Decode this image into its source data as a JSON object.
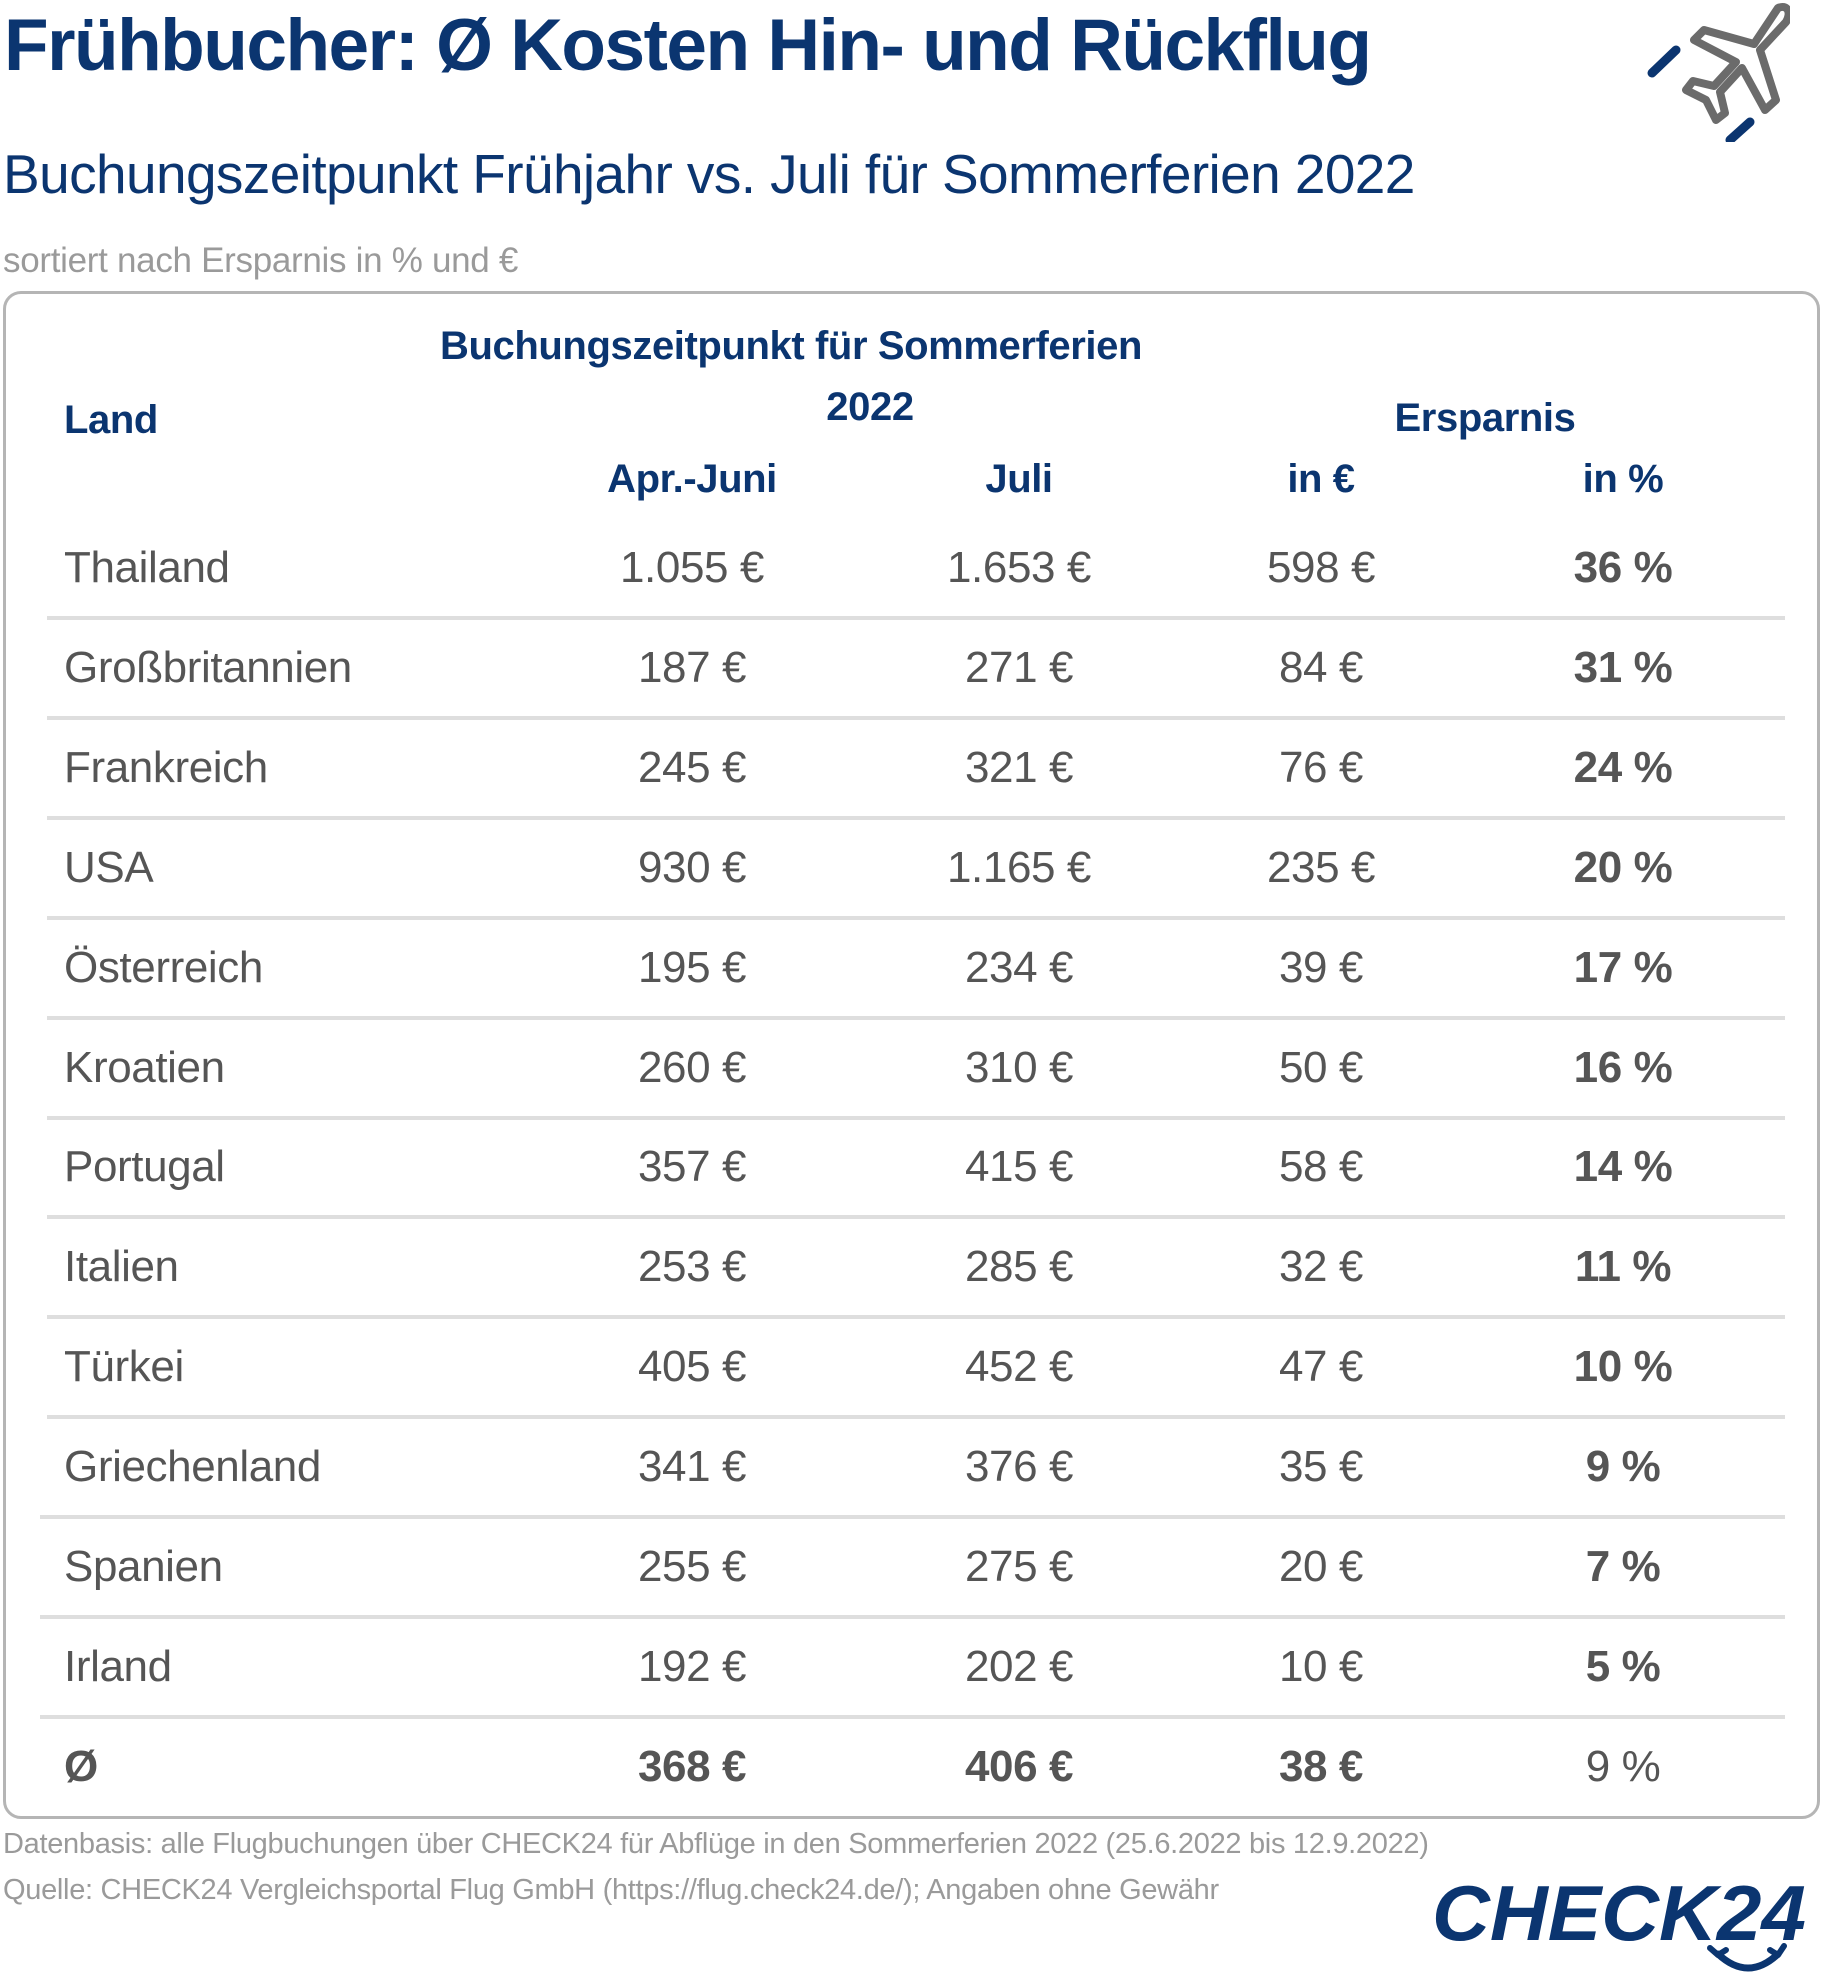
{
  "header": {
    "title": "Frühbucher: Ø Kosten Hin- und Rückflug",
    "subtitle": "Buchungszeitpunkt Frühjahr vs. Juli für Sommerferien 2022",
    "note": "sortiert nach Ersparnis in % und €",
    "icon": "airplane-icon"
  },
  "colors": {
    "brand_navy": "#0b3570",
    "text_gray": "#555555",
    "muted_gray": "#9a9a9a",
    "separator": "#dedede",
    "border": "#b5b5b5"
  },
  "table": {
    "headers": {
      "land": "Land",
      "group_booking_line1": "Buchungszeitpunkt für Sommerferien",
      "group_booking_line2": "2022",
      "group_savings": "Ersparnis",
      "apr_juni": "Apr.-Juni",
      "juli": "Juli",
      "in_eur": "in €",
      "in_pct": "in %"
    },
    "rows": [
      {
        "land": "Thailand",
        "apr_juni": "1.055 €",
        "juli": "1.653 €",
        "ersparnis_eur": "598 €",
        "ersparnis_pct": "36 %"
      },
      {
        "land": "Großbritannien",
        "apr_juni": "187 €",
        "juli": "271 €",
        "ersparnis_eur": "84 €",
        "ersparnis_pct": "31 %"
      },
      {
        "land": "Frankreich",
        "apr_juni": "245 €",
        "juli": "321 €",
        "ersparnis_eur": "76 €",
        "ersparnis_pct": "24 %"
      },
      {
        "land": "USA",
        "apr_juni": "930 €",
        "juli": "1.165 €",
        "ersparnis_eur": "235 €",
        "ersparnis_pct": "20 %"
      },
      {
        "land": "Österreich",
        "apr_juni": "195 €",
        "juli": "234 €",
        "ersparnis_eur": "39 €",
        "ersparnis_pct": "17 %"
      },
      {
        "land": "Kroatien",
        "apr_juni": "260 €",
        "juli": "310 €",
        "ersparnis_eur": "50 €",
        "ersparnis_pct": "16 %"
      },
      {
        "land": "Portugal",
        "apr_juni": "357 €",
        "juli": "415 €",
        "ersparnis_eur": "58 €",
        "ersparnis_pct": "14 %"
      },
      {
        "land": "Italien",
        "apr_juni": "253 €",
        "juli": "285 €",
        "ersparnis_eur": "32 €",
        "ersparnis_pct": "11 %"
      },
      {
        "land": "Türkei",
        "apr_juni": "405 €",
        "juli": "452 €",
        "ersparnis_eur": "47 €",
        "ersparnis_pct": "10 %"
      },
      {
        "land": "Griechenland",
        "apr_juni": "341 €",
        "juli": "376 €",
        "ersparnis_eur": "35 €",
        "ersparnis_pct": "9 %"
      },
      {
        "land": "Spanien",
        "apr_juni": "255 €",
        "juli": "275 €",
        "ersparnis_eur": "20 €",
        "ersparnis_pct": "7 %"
      },
      {
        "land": "Irland",
        "apr_juni": "192 €",
        "juli": "202 €",
        "ersparnis_eur": "10 €",
        "ersparnis_pct": "5 %"
      }
    ],
    "average": {
      "land": "Ø",
      "apr_juni": "368 €",
      "juli": "406 €",
      "ersparnis_eur": "38 €",
      "ersparnis_pct": "9 %"
    }
  },
  "footer": {
    "datenbasis": "Datenbasis: alle Flugbuchungen über CHECK24 für Abflüge in den Sommerferien 2022 (25.6.2022 bis 12.9.2022)",
    "quelle": "Quelle: CHECK24 Vergleichsportal Flug GmbH (https://flug.check24.de/); Angaben ohne Gewähr",
    "logo_text": "CHECK24"
  }
}
